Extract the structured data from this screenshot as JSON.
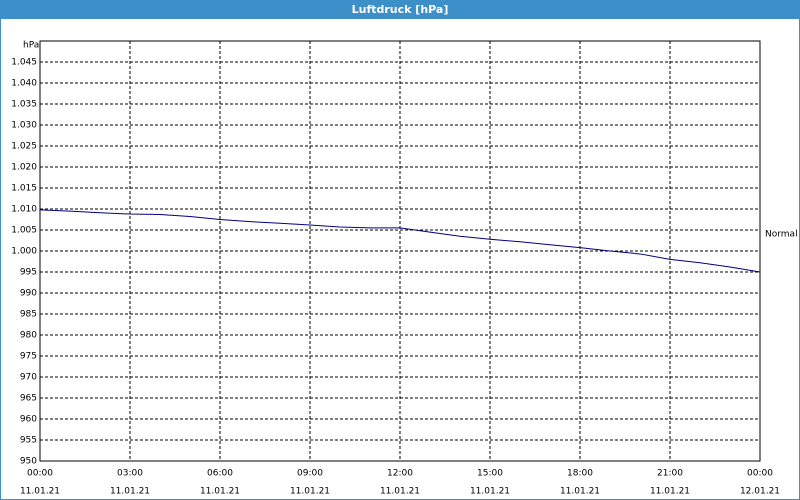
{
  "window_title": "Luftdruck [hPa]",
  "chart_data": {
    "type": "line",
    "y_unit": "hPa",
    "x": [
      0,
      1,
      2,
      3,
      4,
      5,
      6,
      7,
      8,
      9,
      10,
      11,
      12,
      13,
      14,
      15,
      16,
      17,
      18,
      19,
      20,
      21,
      22,
      23,
      24
    ],
    "series": [
      {
        "name": "Normal",
        "color": "#000080",
        "values": [
          1009.8,
          1009.5,
          1009.1,
          1008.8,
          1008.7,
          1008.2,
          1007.5,
          1007.0,
          1006.6,
          1006.2,
          1005.7,
          1005.5,
          1005.5,
          1004.5,
          1003.5,
          1002.8,
          1002.2,
          1001.5,
          1000.8,
          1000.0,
          999.3,
          998.0,
          997.2,
          996.2,
          995.0
        ]
      }
    ],
    "xlim": [
      0,
      24
    ],
    "xticks": [
      {
        "value": 0,
        "label": "00:00",
        "date": "11.01.21"
      },
      {
        "value": 3,
        "label": "03:00",
        "date": "11.01.21"
      },
      {
        "value": 6,
        "label": "06:00",
        "date": "11.01.21"
      },
      {
        "value": 9,
        "label": "09:00",
        "date": "11.01.21"
      },
      {
        "value": 12,
        "label": "12:00",
        "date": "11.01.21"
      },
      {
        "value": 15,
        "label": "15:00",
        "date": "11.01.21"
      },
      {
        "value": 18,
        "label": "18:00",
        "date": "11.01.21"
      },
      {
        "value": 21,
        "label": "21:00",
        "date": "11.01.21"
      },
      {
        "value": 24,
        "label": "00:00",
        "date": "12.01.21"
      }
    ],
    "ylim": [
      950,
      1050
    ],
    "yticks": [
      950,
      955,
      960,
      965,
      970,
      975,
      980,
      985,
      990,
      995,
      {
        "value": 1000,
        "label": "1.000"
      },
      {
        "value": 1005,
        "label": "1.005"
      },
      {
        "value": 1010,
        "label": "1.010"
      },
      {
        "value": 1015,
        "label": "1.015"
      },
      {
        "value": 1020,
        "label": "1.020"
      },
      {
        "value": 1025,
        "label": "1.025"
      },
      {
        "value": 1030,
        "label": "1.030"
      },
      {
        "value": 1035,
        "label": "1.035"
      },
      {
        "value": 1040,
        "label": "1.040"
      },
      {
        "value": 1045,
        "label": "1.045"
      }
    ],
    "grid": true,
    "legend": "right"
  }
}
